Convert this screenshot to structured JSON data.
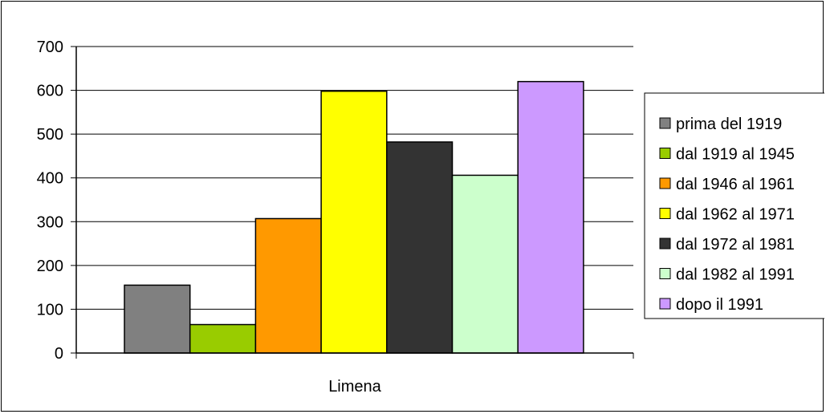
{
  "chart_data": {
    "type": "bar",
    "categories": [
      "Limena"
    ],
    "series": [
      {
        "name": "prima del 1919",
        "values": [
          155
        ],
        "color": "#808080"
      },
      {
        "name": "dal 1919 al 1945",
        "values": [
          65
        ],
        "color": "#99cc00"
      },
      {
        "name": "dal 1946 al 1961",
        "values": [
          307
        ],
        "color": "#ff9900"
      },
      {
        "name": "dal 1962 al 1971",
        "values": [
          598
        ],
        "color": "#ffff00"
      },
      {
        "name": "dal 1972 al 1981",
        "values": [
          482
        ],
        "color": "#333333"
      },
      {
        "name": "dal 1982 al 1991",
        "values": [
          406
        ],
        "color": "#ccffcc"
      },
      {
        "name": "dopo il 1991",
        "values": [
          620
        ],
        "color": "#cc99ff"
      }
    ],
    "yticks": [
      0,
      100,
      200,
      300,
      400,
      500,
      600,
      700
    ],
    "ylim": [
      0,
      700
    ],
    "grid": true,
    "legend": "right"
  }
}
